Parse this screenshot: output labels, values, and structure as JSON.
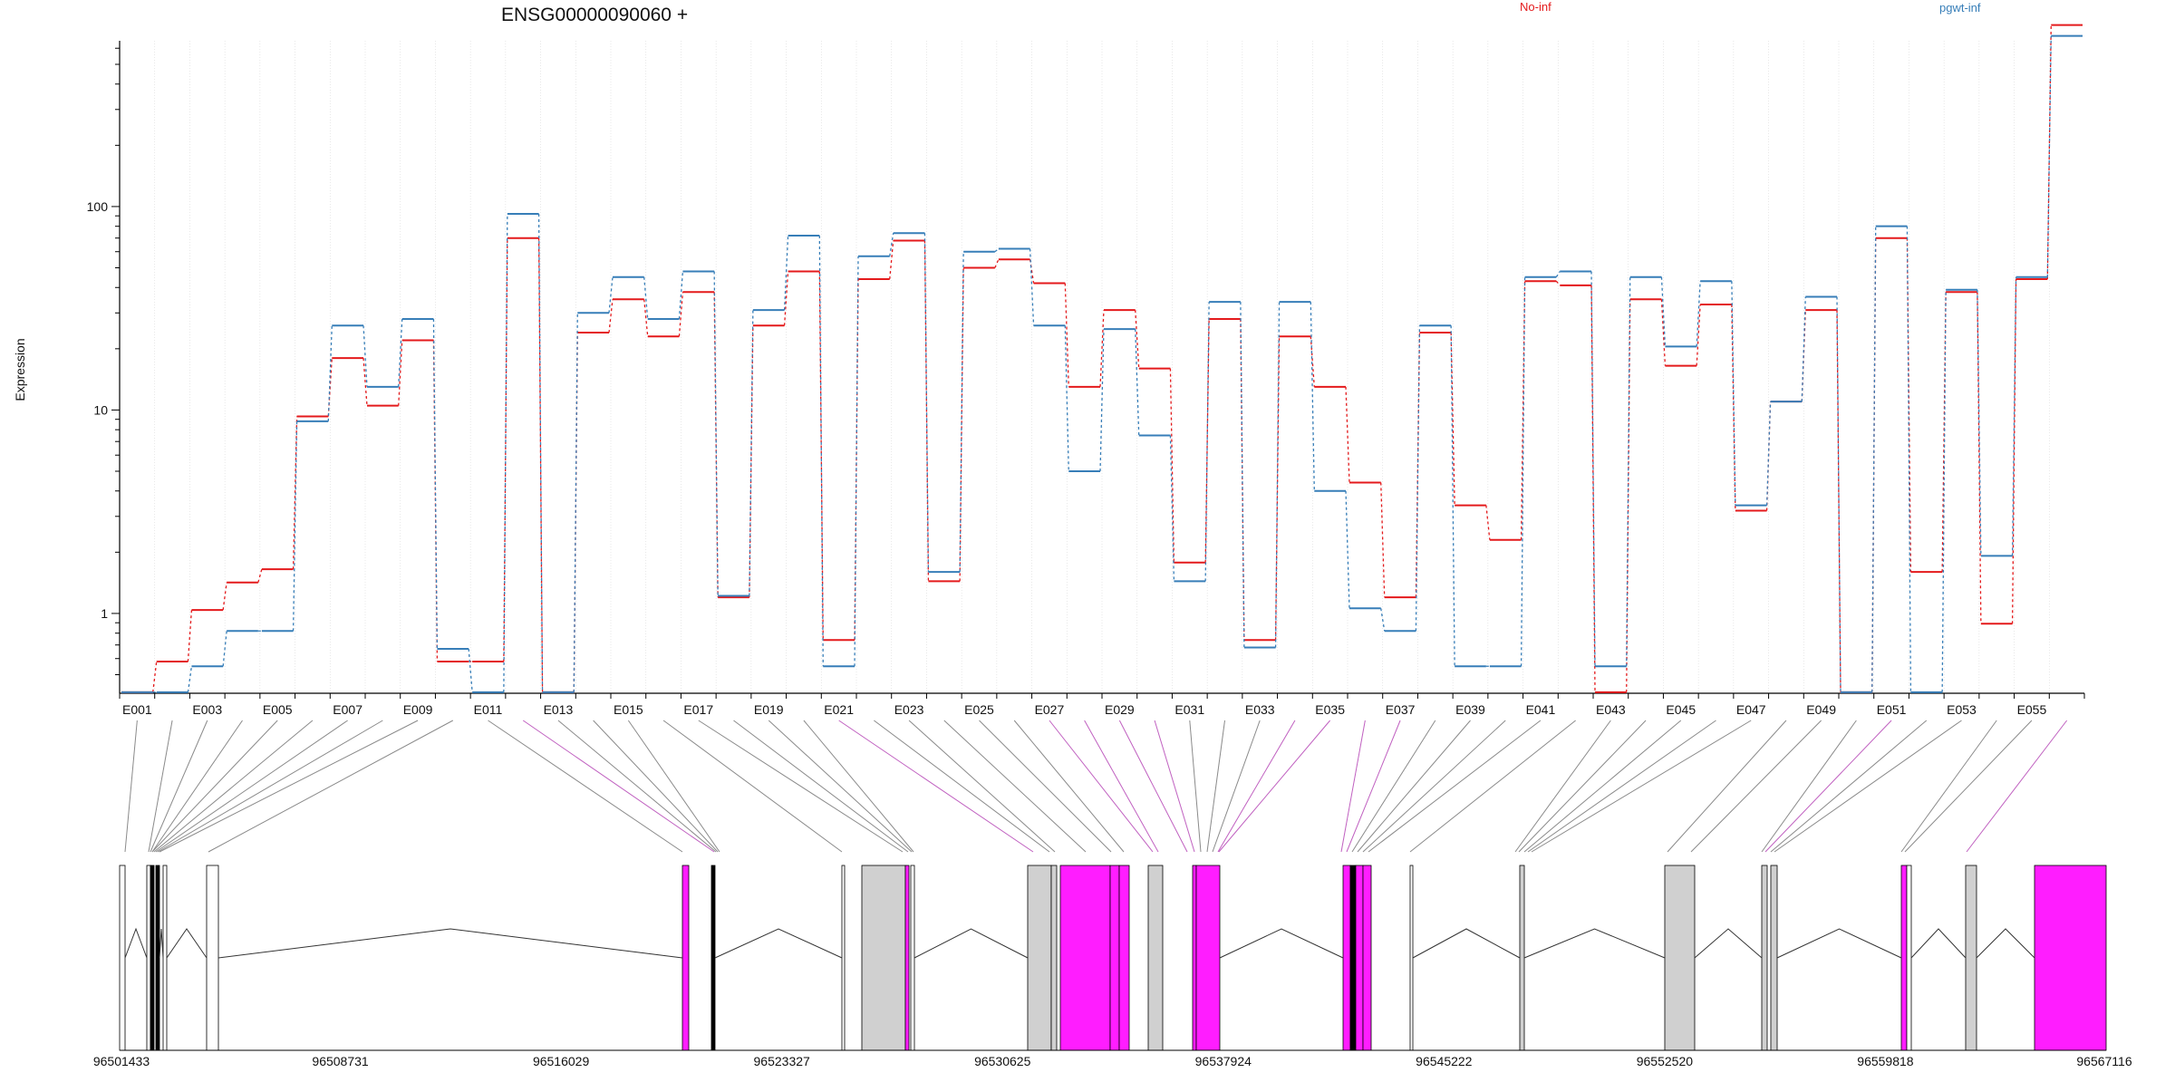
{
  "title": "ENSG00000090060 +",
  "legend": [
    {
      "name": "No-inf",
      "color": "#e41a1c"
    },
    {
      "name": "pgwt-inf",
      "color": "#377eb8"
    }
  ],
  "chart_data": {
    "type": "line",
    "title": "ENSG00000090060 +",
    "ylabel": "Expression",
    "yscale": "log",
    "ylim": [
      0.4,
      1000
    ],
    "yticks": [
      "1",
      "10",
      "100"
    ],
    "legend_position": "top",
    "grid": "vertical dotted lines at exon boundaries",
    "categories": [
      "E001",
      "E002",
      "E003",
      "E004",
      "E005",
      "E006",
      "E007",
      "E008",
      "E009",
      "E010",
      "E011",
      "E012",
      "E013",
      "E014",
      "E015",
      "E016",
      "E017",
      "E018",
      "E019",
      "E020",
      "E021",
      "E022",
      "E023",
      "E024",
      "E025",
      "E026",
      "E027",
      "E028",
      "E029",
      "E030",
      "E031",
      "E032",
      "E033",
      "E034",
      "E035",
      "E036",
      "E037",
      "E038",
      "E039",
      "E040",
      "E041",
      "E042",
      "E043",
      "E044",
      "E045",
      "E046",
      "E047",
      "E048",
      "E049",
      "E050",
      "E051",
      "E052",
      "E053",
      "E054",
      "E055",
      "E056"
    ],
    "xtick_labels": [
      "E001",
      "E003",
      "E005",
      "E007",
      "E009",
      "E011",
      "E013",
      "E015",
      "E017",
      "E019",
      "E021",
      "E023",
      "E025",
      "E027",
      "E029",
      "E031",
      "E033",
      "E035",
      "E037",
      "E039",
      "E041",
      "E043",
      "E045",
      "E047",
      "E049",
      "E051",
      "E053",
      "E055"
    ],
    "series": [
      {
        "name": "No-inf",
        "color": "#e41a1c",
        "values": [
          0.41,
          0.58,
          1.04,
          1.42,
          1.65,
          9.3,
          18,
          10.5,
          22,
          0.58,
          0.58,
          70,
          0.41,
          24,
          35,
          23,
          38,
          1.2,
          26,
          48,
          0.74,
          44,
          68,
          1.44,
          50,
          55,
          42,
          13,
          31,
          16,
          1.78,
          28,
          0.74,
          23,
          13,
          4.4,
          1.2,
          24,
          3.4,
          2.3,
          43,
          41,
          0.41,
          35,
          16.5,
          33,
          3.2,
          11,
          31,
          0.41,
          70,
          1.6,
          38,
          0.89,
          44,
          780
        ]
      },
      {
        "name": "pgwt-inf",
        "color": "#377eb8",
        "values": [
          0.41,
          0.41,
          0.55,
          0.82,
          0.82,
          8.8,
          26,
          13,
          28,
          0.67,
          0.41,
          92,
          0.41,
          30,
          45,
          28,
          48,
          1.22,
          31,
          72,
          0.55,
          57,
          74,
          1.6,
          60,
          62,
          26,
          5,
          25,
          7.5,
          1.44,
          34,
          0.68,
          34,
          4.0,
          1.06,
          0.82,
          26,
          0.55,
          0.55,
          45,
          48,
          0.55,
          45,
          20.5,
          43,
          3.4,
          11,
          36,
          0.41,
          80,
          0.41,
          39,
          1.92,
          45,
          690
        ]
      }
    ],
    "genomic_ticks": [
      "96501433",
      "96508731",
      "96516029",
      "96523327",
      "96530625",
      "96537924",
      "96545222",
      "96552520",
      "96559818",
      "96567116"
    ]
  }
}
